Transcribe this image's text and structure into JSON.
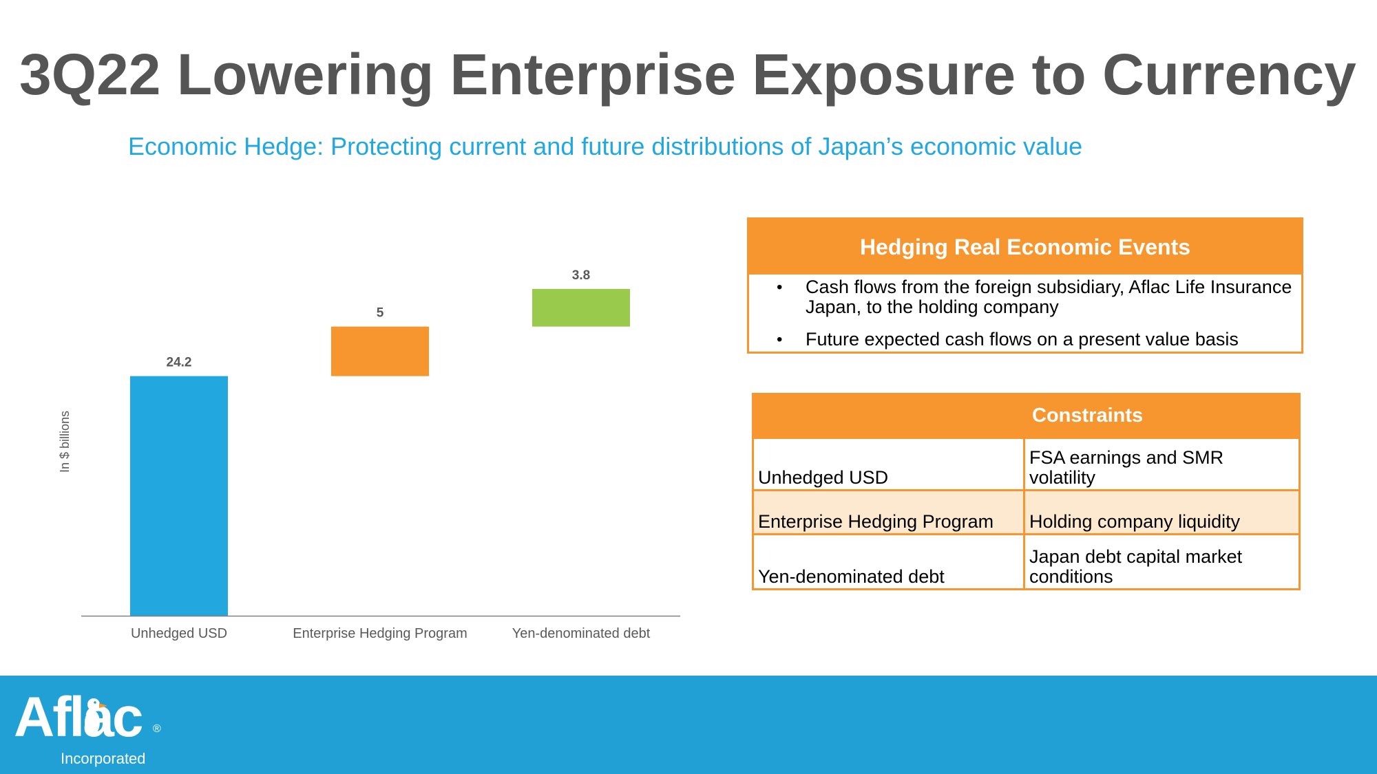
{
  "title": "3Q22 Lowering Enterprise Exposure to Currency",
  "subtitle": "Economic Hedge: Protecting current and future distributions of Japan’s economic value",
  "chart_data": {
    "type": "bar",
    "subtype": "waterfall",
    "categories": [
      "Unhedged USD",
      "Enterprise Hedging Program",
      "Yen-denominated debt"
    ],
    "values": [
      24.2,
      5,
      3.8
    ],
    "data_labels": [
      "24.2",
      "5",
      "3.8"
    ],
    "ylabel": "In $ billions",
    "ylim": [
      0,
      33
    ],
    "colors": [
      "#22A7DF",
      "#F7962F",
      "#9ACA4B"
    ],
    "grid": false,
    "legend": "none"
  },
  "events_box": {
    "header": "Hedging Real Economic Events",
    "bullet_symbol": "•",
    "items": [
      "Cash flows from the foreign subsidiary, Aflac Life Insurance Japan, to the holding company",
      "Future expected cash flows on a present value basis"
    ]
  },
  "constraints_table": {
    "header_left": "",
    "header_right": "Constraints",
    "rows": [
      {
        "program": "Unhedged USD",
        "constraint": "FSA earnings and SMR volatility"
      },
      {
        "program": "Enterprise Hedging Program",
        "constraint": "Holding company liquidity"
      },
      {
        "program": "Yen-denominated debt",
        "constraint": "Japan debt capital market conditions"
      }
    ]
  },
  "footer": {
    "logo_text": "Aflac",
    "logo_registered": "®",
    "logo_subtext": "Incorporated",
    "logo_icon": "duck-icon",
    "color": "#21A0D6"
  }
}
